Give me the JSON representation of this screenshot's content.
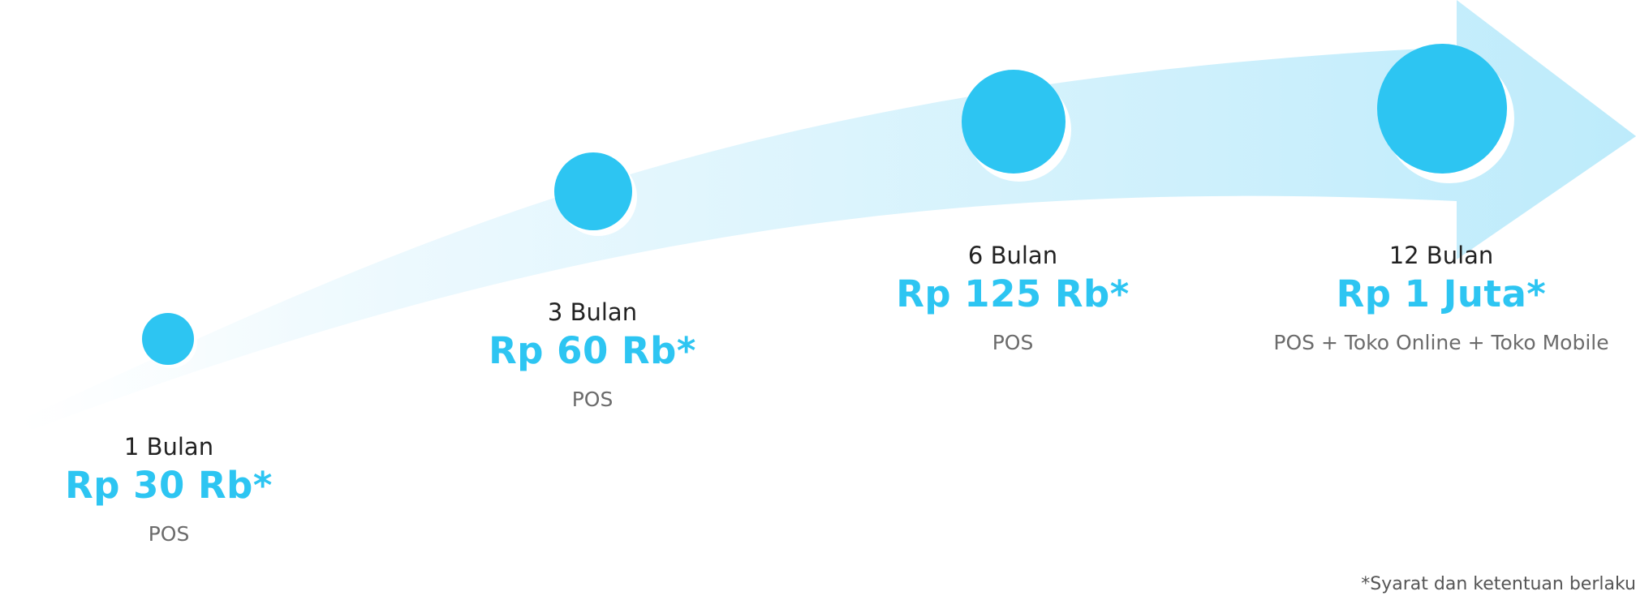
{
  "milestones": [
    {
      "period": "1 Bulan",
      "price": "Rp 30 Rb*",
      "feature": "POS"
    },
    {
      "period": "3 Bulan",
      "price": "Rp 60 Rb*",
      "feature": "POS"
    },
    {
      "period": "6 Bulan",
      "price": "Rp 125 Rb*",
      "feature": "POS"
    },
    {
      "period": "12 Bulan",
      "price": "Rp 1 Juta*",
      "feature": "POS + Toko Online + Toko Mobile"
    }
  ],
  "disclaimer": "*Syarat dan ketentuan berlaku",
  "colors": {
    "accent": "#2dc5f2",
    "arrow_light": "#f2fbfe",
    "arrow_dark": "#bfecfb",
    "text_dark": "#222222",
    "text_muted": "#6b6b6b"
  }
}
